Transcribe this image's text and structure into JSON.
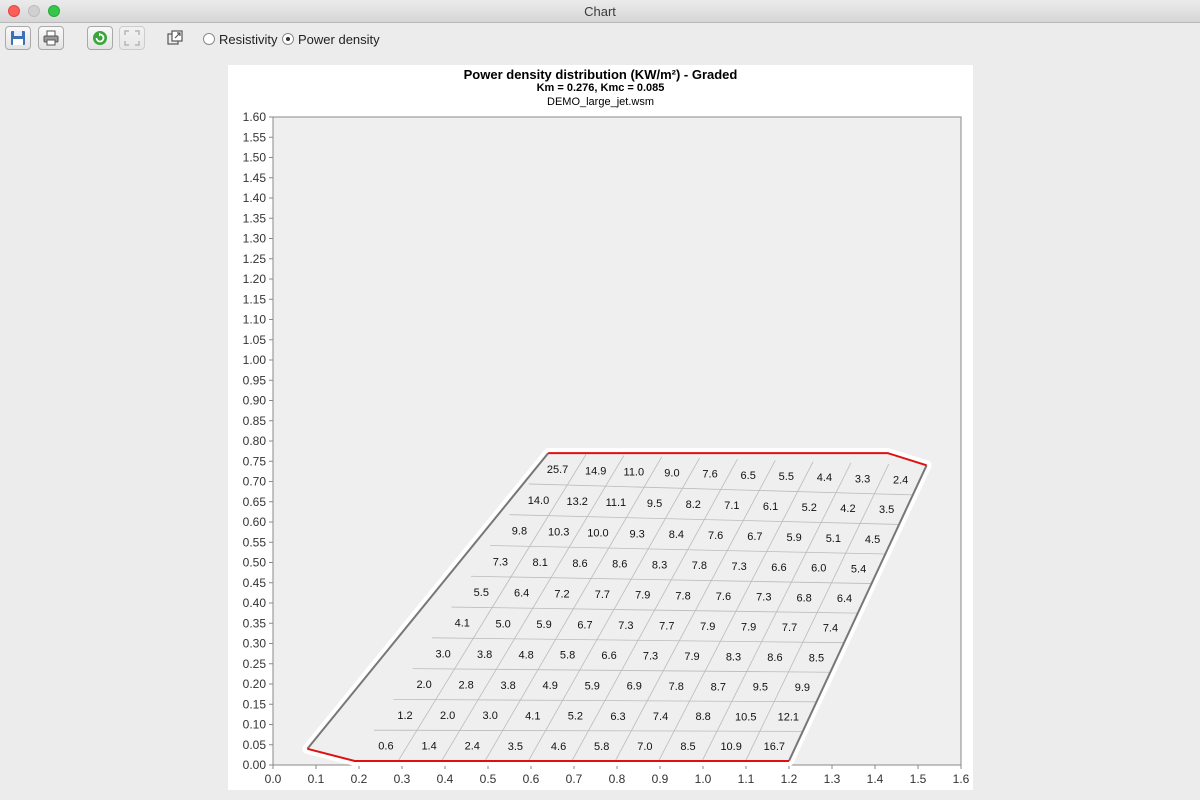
{
  "window": {
    "title": "Chart"
  },
  "toolbar": {
    "buttons": [
      {
        "icon": "save-icon"
      },
      {
        "icon": "print-icon"
      },
      {
        "icon": "refresh-icon"
      },
      {
        "icon": "fit-icon"
      },
      {
        "icon": "popout-icon"
      }
    ],
    "radio_resistivity": "Resistivity",
    "radio_power_density": "Power density",
    "selected_mode": "Power density"
  },
  "chart": {
    "title": "Power density distribution (KW/m²) - Graded",
    "subtitle": "Km = 0.276, Kmc = 0.085",
    "filename": "DEMO_large_jet.wsm"
  },
  "chart_data": {
    "type": "heatmap",
    "xlim": [
      0.0,
      1.6
    ],
    "ylim": [
      0.0,
      1.6
    ],
    "x_ticks": [
      "0.0",
      "0.1",
      "0.2",
      "0.3",
      "0.4",
      "0.5",
      "0.6",
      "0.7",
      "0.8",
      "0.9",
      "1.0",
      "1.1",
      "1.2",
      "1.3",
      "1.4",
      "1.5",
      "1.6"
    ],
    "y_ticks": [
      "0.00",
      "0.05",
      "0.10",
      "0.15",
      "0.20",
      "0.25",
      "0.30",
      "0.35",
      "0.40",
      "0.45",
      "0.50",
      "0.55",
      "0.60",
      "0.65",
      "0.70",
      "0.75",
      "0.80",
      "0.85",
      "0.90",
      "0.95",
      "1.00",
      "1.05",
      "1.10",
      "1.15",
      "1.20",
      "1.25",
      "1.30",
      "1.35",
      "1.40",
      "1.45",
      "1.50",
      "1.55",
      "1.60"
    ],
    "outline": [
      [
        0.08,
        0.04
      ],
      [
        0.19,
        0.01
      ],
      [
        1.2,
        0.01
      ],
      [
        1.52,
        0.74
      ],
      [
        1.43,
        0.77
      ],
      [
        0.64,
        0.77
      ]
    ],
    "grid": {
      "rows": 10,
      "cols": 10
    },
    "values": [
      [
        "0.6",
        "1.4",
        "2.4",
        "3.5",
        "4.6",
        "5.8",
        "7.0",
        "8.5",
        "10.9",
        "16.7"
      ],
      [
        "1.2",
        "2.0",
        "3.0",
        "4.1",
        "5.2",
        "6.3",
        "7.4",
        "8.8",
        "10.5",
        "12.1"
      ],
      [
        "2.0",
        "2.8",
        "3.8",
        "4.9",
        "5.9",
        "6.9",
        "7.8",
        "8.7",
        "9.5",
        "9.9"
      ],
      [
        "3.0",
        "3.8",
        "4.8",
        "5.8",
        "6.6",
        "7.3",
        "7.9",
        "8.3",
        "8.6",
        "8.5"
      ],
      [
        "4.1",
        "5.0",
        "5.9",
        "6.7",
        "7.3",
        "7.7",
        "7.9",
        "7.9",
        "7.7",
        "7.4"
      ],
      [
        "5.5",
        "6.4",
        "7.2",
        "7.7",
        "7.9",
        "7.8",
        "7.6",
        "7.3",
        "6.8",
        "6.4"
      ],
      [
        "7.3",
        "8.1",
        "8.6",
        "8.6",
        "8.3",
        "7.8",
        "7.3",
        "6.6",
        "6.0",
        "5.4"
      ],
      [
        "9.8",
        "10.3",
        "10.0",
        "9.3",
        "8.4",
        "7.6",
        "6.7",
        "5.9",
        "5.1",
        "4.5"
      ],
      [
        "14.0",
        "13.2",
        "11.1",
        "9.5",
        "8.2",
        "7.1",
        "6.1",
        "5.2",
        "4.2",
        "3.5"
      ],
      [
        "25.7",
        "14.9",
        "11.0",
        "9.0",
        "7.6",
        "6.5",
        "5.5",
        "4.4",
        "3.3",
        "2.4"
      ]
    ],
    "colors": {
      "outline": "#777777",
      "edge_highlight": "#e01010",
      "grid": "#bbbbbb",
      "halo": "#ffffff",
      "plot_bg": "#efefef"
    }
  }
}
